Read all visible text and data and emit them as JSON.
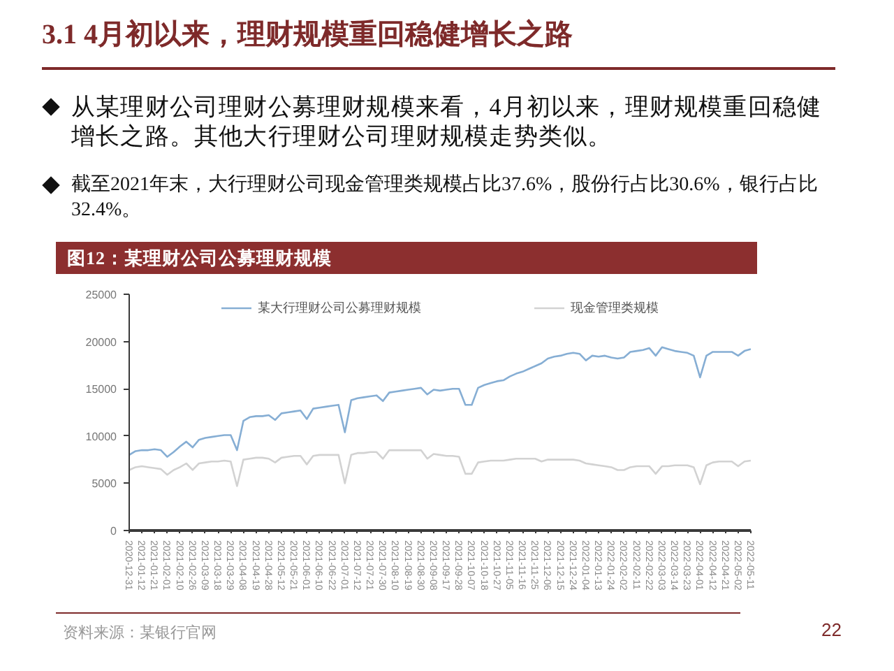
{
  "chart_data": {
    "type": "line",
    "title": "3.1 4月初以来，理财规模重回稳健增长之路",
    "subtitle": "图12：某理财公司公募理财规模",
    "annotations": [
      "从某理财公司理财公募理财规模来看，4月初以来，理财规模重回稳健增长之路。其他大行理财公司理财规模走势类似。",
      "截至2021年末，大行理财公司现金管理类规模占比37.6%，股份行占比30.6%，银行占比32.4%。",
      "资料来源：某银行官网",
      "22"
    ],
    "categories": [
      "2020-12-31",
      null,
      "2021-01-12",
      null,
      "2021-01-21",
      null,
      "2021-02-01",
      null,
      "2021-02-10",
      null,
      "2021-02-26",
      null,
      "2021-03-09",
      null,
      "2021-03-18",
      null,
      "2021-03-29",
      null,
      "2021-04-08",
      null,
      "2021-04-19",
      null,
      "2021-04-28",
      null,
      "2021-05-12",
      null,
      "2021-05-21",
      null,
      "2021-06-01",
      null,
      "2021-06-10",
      null,
      "2021-06-22",
      null,
      "2021-07-01",
      null,
      "2021-07-12",
      null,
      "2021-07-21",
      null,
      "2021-07-30",
      null,
      "2021-08-10",
      null,
      "2021-08-19",
      null,
      "2021-08-30",
      null,
      "2021-09-08",
      null,
      "2021-09-17",
      null,
      "2021-09-28",
      null,
      "2021-10-07",
      null,
      "2021-10-18",
      null,
      "2021-10-27",
      null,
      "2021-11-05",
      null,
      "2021-11-16",
      null,
      "2021-11-25",
      null,
      "2021-12-06",
      null,
      "2021-12-15",
      null,
      "2021-12-24",
      null,
      "2022-01-04",
      null,
      "2022-01-13",
      null,
      "2022-01-24",
      null,
      "2022-02-02",
      null,
      "2022-02-11",
      null,
      "2022-02-22",
      null,
      "2022-03-03",
      null,
      "2022-03-14",
      null,
      "2022-03-23",
      null,
      "2022-04-01",
      null,
      "2022-04-12",
      null,
      "2022-04-21",
      null,
      "2022-05-02",
      null,
      "2022-05-11"
    ],
    "series": [
      {
        "name": "某大行理财公司公募理财规模",
        "color": "#86aed4",
        "values": [
          8000,
          8400,
          8500,
          8500,
          8600,
          8500,
          7800,
          8300,
          8900,
          9400,
          8800,
          9600,
          9800,
          9900,
          10000,
          10100,
          10100,
          8500,
          11600,
          12000,
          12100,
          12100,
          12200,
          11700,
          12400,
          12500,
          12600,
          12700,
          11800,
          12900,
          13000,
          13100,
          13200,
          13300,
          10400,
          13800,
          14000,
          14100,
          14200,
          14300,
          13700,
          14600,
          14700,
          14800,
          14900,
          15000,
          15100,
          14400,
          14900,
          14800,
          14900,
          15000,
          15000,
          13300,
          13300,
          15100,
          15400,
          15600,
          15800,
          15900,
          16300,
          16600,
          16800,
          17100,
          17400,
          17700,
          18200,
          18400,
          18500,
          18700,
          18800,
          18700,
          18000,
          18500,
          18400,
          18500,
          18300,
          18200,
          18300,
          18900,
          19000,
          19100,
          19300,
          18500,
          19400,
          19200,
          19000,
          18900,
          18800,
          18500,
          16200,
          18500,
          18900,
          18900,
          18900,
          18900,
          18500,
          19000,
          19200
        ]
      },
      {
        "name": "现金管理类规模",
        "color": "#d2d2d2",
        "values": [
          6400,
          6700,
          6800,
          6700,
          6600,
          6500,
          5900,
          6400,
          6700,
          7100,
          6400,
          7100,
          7200,
          7300,
          7300,
          7400,
          7300,
          4700,
          7500,
          7600,
          7700,
          7700,
          7600,
          7200,
          7700,
          7800,
          7900,
          7900,
          7000,
          7900,
          8000,
          8000,
          8000,
          8000,
          5000,
          8000,
          8200,
          8200,
          8300,
          8300,
          7600,
          8500,
          8500,
          8500,
          8500,
          8500,
          8500,
          7600,
          8100,
          8000,
          7900,
          7900,
          7800,
          6000,
          6000,
          7200,
          7300,
          7400,
          7400,
          7400,
          7500,
          7600,
          7600,
          7600,
          7600,
          7300,
          7500,
          7500,
          7500,
          7500,
          7500,
          7400,
          7100,
          7000,
          6900,
          6800,
          6700,
          6400,
          6400,
          6700,
          6800,
          6800,
          6800,
          6000,
          6800,
          6800,
          6900,
          6900,
          6900,
          6700,
          4900,
          6900,
          7200,
          7300,
          7300,
          7300,
          6800,
          7300,
          7400
        ]
      }
    ],
    "ylim": [
      0,
      25000
    ],
    "yticks": [
      0,
      5000,
      10000,
      15000,
      20000,
      25000
    ],
    "grid": false,
    "legend": "top",
    "line_style": "solid"
  }
}
